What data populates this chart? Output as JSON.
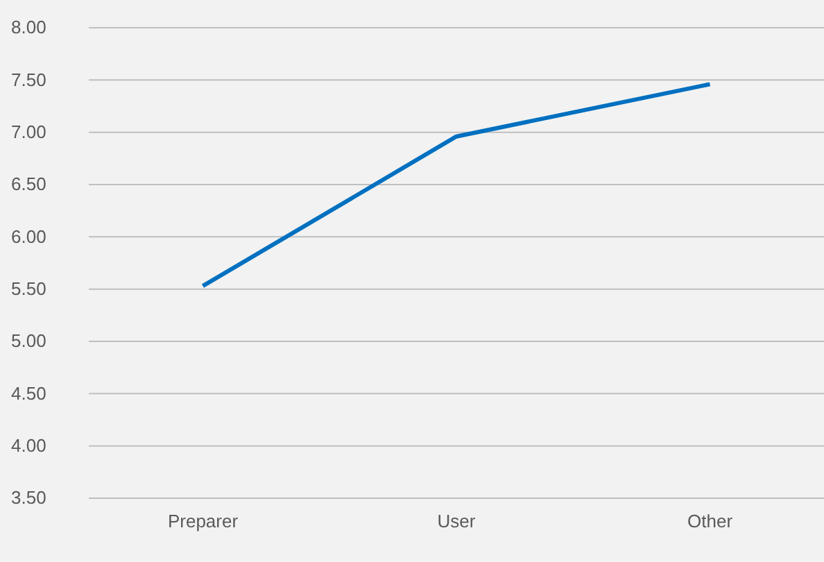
{
  "chart_data": {
    "type": "line",
    "categories": [
      "Preparer",
      "User",
      "Other"
    ],
    "series": [
      {
        "color": "#0070c0",
        "values": [
          5.53,
          6.96,
          7.46
        ]
      }
    ],
    "ylim": [
      3.5,
      8
    ],
    "yticks": [
      {
        "value": 3.5,
        "label": "3.50"
      },
      {
        "value": 4,
        "label": "4.00"
      },
      {
        "value": 4.5,
        "label": "4.50"
      },
      {
        "value": 5,
        "label": "5.00"
      },
      {
        "value": 5.5,
        "label": "5.50"
      },
      {
        "value": 6,
        "label": "6.00"
      },
      {
        "value": 6.5,
        "label": "6.50"
      },
      {
        "value": 7,
        "label": "7.00"
      },
      {
        "value": 7.5,
        "label": "7.50"
      },
      {
        "value": 8,
        "label": "8.00"
      }
    ],
    "grid": "y",
    "marker": "none",
    "line_style": "solid"
  }
}
